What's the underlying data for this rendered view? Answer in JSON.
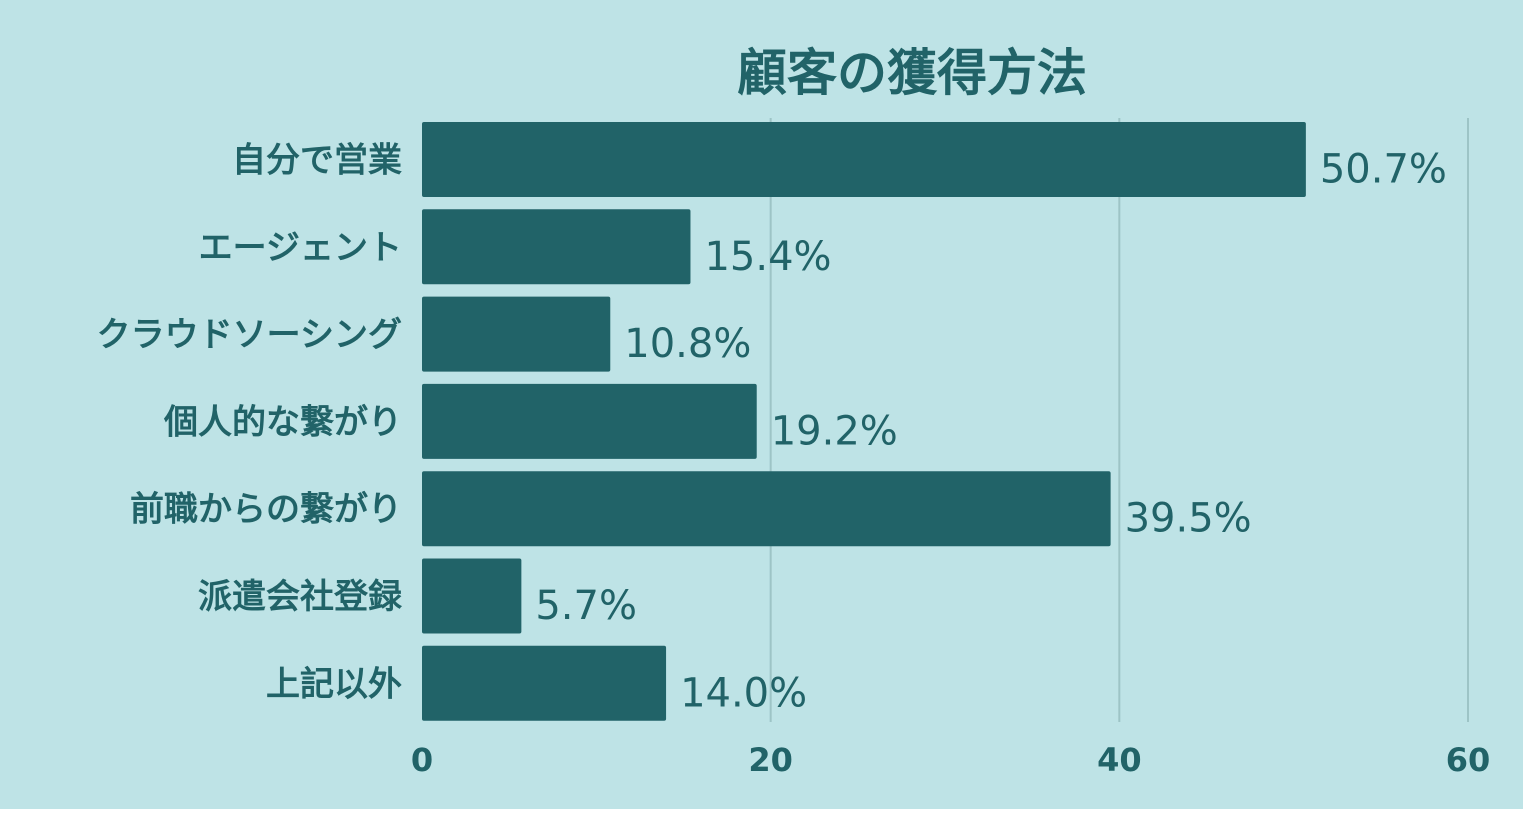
{
  "chart_data": {
    "type": "bar",
    "orientation": "horizontal",
    "title": "顧客の獲得方法",
    "categories": [
      "自分で営業",
      "エージェント",
      "クラウドソーシング",
      "個人的な繋がり",
      "前職からの繋がり",
      "派遣会社登録",
      "上記以外"
    ],
    "values": [
      50.7,
      15.4,
      10.8,
      19.2,
      39.5,
      5.7,
      14.0
    ],
    "value_labels": [
      "50.7%",
      "15.4%",
      "10.8%",
      "19.2%",
      "39.5%",
      "5.7%",
      "14.0%"
    ],
    "xlim": [
      0,
      60
    ],
    "x_ticks": [
      0,
      20,
      40,
      60
    ],
    "x_tick_labels": [
      "0",
      "20",
      "40",
      "60"
    ],
    "grid": true,
    "colors": {
      "background": "#bee3e6",
      "bar": "#216368",
      "text": "#216368",
      "grid": "#9dc4c6"
    }
  }
}
